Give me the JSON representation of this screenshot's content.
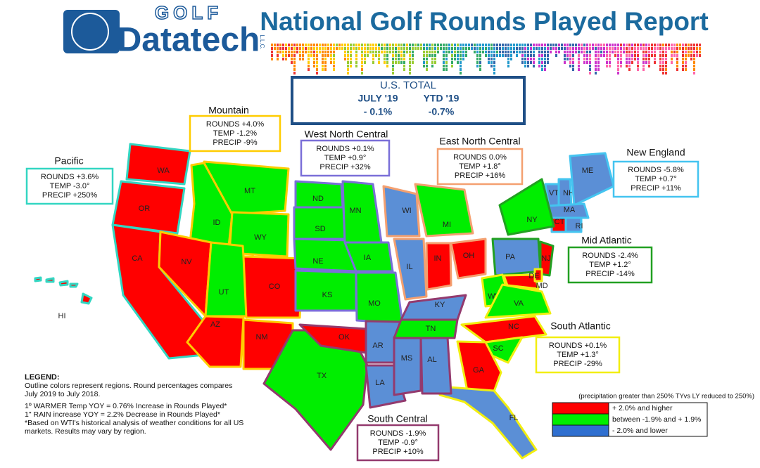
{
  "header": {
    "logo_top": "GOLF",
    "logo_main": "Datatech",
    "logo_suffix": "L.L.C.",
    "title": "National Golf Rounds Played Report"
  },
  "us_total": {
    "title": "U.S. TOTAL",
    "columns": [
      {
        "period": "JULY '19",
        "change": "- 0.1%"
      },
      {
        "period": "YTD '19",
        "change": "-0.7%"
      }
    ]
  },
  "regions": [
    {
      "name": "Pacific",
      "color": "#33d6c2",
      "lines": [
        "ROUNDS +3.6%",
        "TEMP -3.0°",
        "PRECIP +250%"
      ],
      "states": [
        {
          "label": "WA",
          "color": "#ff0000"
        },
        {
          "label": "OR",
          "color": "#ff0000"
        },
        {
          "label": "CA",
          "color": "#ff0000"
        },
        {
          "label": "HI",
          "color": "#ff0000"
        }
      ]
    },
    {
      "name": "Mountain",
      "color": "#ffcc00",
      "lines": [
        "ROUNDS +4.0%",
        "TEMP -1.2%",
        "PRECIP -9%"
      ],
      "states": [
        {
          "label": "MT",
          "color": "#00ee00"
        },
        {
          "label": "ID",
          "color": "#00ee00"
        },
        {
          "label": "WY",
          "color": "#00ee00"
        },
        {
          "label": "NV",
          "color": "#ff0000"
        },
        {
          "label": "UT",
          "color": "#00ee00"
        },
        {
          "label": "CO",
          "color": "#ff0000"
        },
        {
          "label": "AZ",
          "color": "#ff0000"
        },
        {
          "label": "NM",
          "color": "#ff0000"
        }
      ]
    },
    {
      "name": "West North Central",
      "color": "#7a6fd8",
      "lines": [
        "ROUNDS +0.1%",
        "TEMP +0.9°",
        "PRECIP +32%"
      ],
      "states": [
        {
          "label": "ND",
          "color": "#00ee00"
        },
        {
          "label": "SD",
          "color": "#00ee00"
        },
        {
          "label": "NE",
          "color": "#00ee00"
        },
        {
          "label": "KS",
          "color": "#00ee00"
        },
        {
          "label": "MN",
          "color": "#00ee00"
        },
        {
          "label": "IA",
          "color": "#00ee00"
        },
        {
          "label": "MO",
          "color": "#00ee00"
        }
      ]
    },
    {
      "name": "East North Central",
      "color": "#f4a070",
      "lines": [
        "ROUNDS 0.0%",
        "TEMP +1.8°",
        "PRECIP +16%"
      ],
      "states": [
        {
          "label": "WI",
          "color": "#5b8fd6"
        },
        {
          "label": "MI",
          "color": "#00ee00"
        },
        {
          "label": "IL",
          "color": "#5b8fd6"
        },
        {
          "label": "IN",
          "color": "#ff0000"
        },
        {
          "label": "OH",
          "color": "#ff0000"
        }
      ]
    },
    {
      "name": "New England",
      "color": "#44c4f0",
      "lines": [
        "ROUNDS -5.8%",
        "TEMP +0.7°",
        "PRECIP +11%"
      ],
      "states": [
        {
          "label": "VT",
          "color": "#5b8fd6"
        },
        {
          "label": "NH",
          "color": "#5b8fd6"
        },
        {
          "label": "ME",
          "color": "#5b8fd6"
        },
        {
          "label": "MA",
          "color": "#5b8fd6"
        },
        {
          "label": "CT",
          "color": "#ff0000"
        },
        {
          "label": "RI",
          "color": "#5b8fd6"
        }
      ]
    },
    {
      "name": "Mid Atlantic",
      "color": "#22a022",
      "lines": [
        "ROUNDS -2.4%",
        "TEMP +1.2°",
        "PRECIP -14%"
      ],
      "states": [
        {
          "label": "NY",
          "color": "#00ee00"
        },
        {
          "label": "PA",
          "color": "#5b8fd6"
        },
        {
          "label": "NJ",
          "color": "#ff0000"
        }
      ]
    },
    {
      "name": "South Atlantic",
      "color": "#f2ee10",
      "lines": [
        "ROUNDS +0.1%",
        "TEMP +1.3°",
        "PRECIP -29%"
      ],
      "states": [
        {
          "label": "WV",
          "color": "#00ee00"
        },
        {
          "label": "VA",
          "color": "#00ee00"
        },
        {
          "label": "MD",
          "color": "#ff0000"
        },
        {
          "label": "DE",
          "color": "#ff0000"
        },
        {
          "label": "NC",
          "color": "#ff0000"
        },
        {
          "label": "SC",
          "color": "#00ee00"
        },
        {
          "label": "GA",
          "color": "#ff0000"
        },
        {
          "label": "FL",
          "color": "#5b8fd6"
        }
      ]
    },
    {
      "name": "South Central",
      "color": "#933a6e",
      "lines": [
        "ROUNDS -1.9%",
        "TEMP -0.9°",
        "PRECIP +10%"
      ],
      "states": [
        {
          "label": "TX",
          "color": "#00ee00"
        },
        {
          "label": "OK",
          "color": "#ff0000"
        },
        {
          "label": "AR",
          "color": "#5b8fd6"
        },
        {
          "label": "LA",
          "color": "#5b8fd6"
        },
        {
          "label": "MS",
          "color": "#5b8fd6"
        },
        {
          "label": "AL",
          "color": "#5b8fd6"
        },
        {
          "label": "TN",
          "color": "#00ee00"
        },
        {
          "label": "KY",
          "color": "#5b8fd6"
        }
      ]
    }
  ],
  "legend": {
    "title": "LEGEND:",
    "notes": [
      "Outline colors represent regions. Round percentages compares",
      "July 2019 to July 2018.",
      "1º WARMER Temp YOY = 0.76% Increase in Rounds Played*",
      "1\" RAIN increase YOY = 2.2% Decrease in Rounds Played*",
      "*Based on WTI's historical analysis of weather conditions for all US",
      "markets. Results may vary by region."
    ],
    "precip_note": "(precipitation greater than 250% TYvs LY reduced to 250%)",
    "categories": [
      {
        "label": "+ 2.0% and higher",
        "color": "#ff0000"
      },
      {
        "label": "between -1.9% and + 1.9%",
        "color": "#00ee00"
      },
      {
        "label": "- 2.0% and lower",
        "color": "#2f6fd0"
      }
    ]
  }
}
